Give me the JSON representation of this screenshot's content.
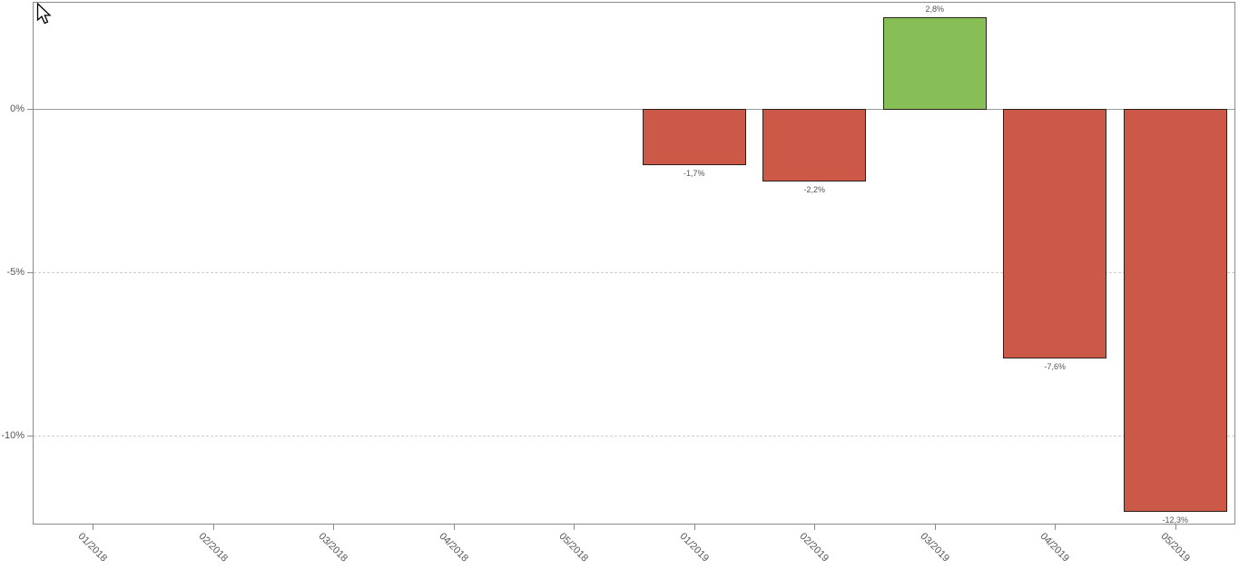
{
  "page": {
    "background": "#ffffff"
  },
  "chart": {
    "frame_color": "#8a8a8a",
    "axis_color": "#8a8a8a",
    "zero_line_color": "#999999",
    "grid_color": "#cfcfcf",
    "tick_label_color": "#555555",
    "value_label_color": "#555555",
    "bar_border_color": "#2a201c",
    "positive_color": "#87BE55",
    "negative_color": "#CC5847"
  },
  "chart_data": {
    "type": "bar",
    "title": "",
    "xlabel": "",
    "ylabel": "",
    "categories": [
      "01/2018",
      "02/2018",
      "03/2018",
      "04/2018",
      "05/2018",
      "01/2019",
      "02/2019",
      "03/2019",
      "04/2019",
      "05/2019"
    ],
    "values": [
      null,
      null,
      null,
      null,
      null,
      -1.7,
      -2.2,
      2.8,
      -7.6,
      -12.3
    ],
    "value_labels": [
      "",
      "",
      "",
      "",
      "",
      "-1,7%",
      "-2,2%",
      "2,8%",
      "-7,6%",
      "-12,3%"
    ],
    "y_ticks": [
      {
        "value": 0,
        "label": "0%"
      },
      {
        "value": -5,
        "label": "-5%"
      },
      {
        "value": -10,
        "label": "-10%"
      }
    ],
    "ylim": [
      -12.7,
      3.3
    ],
    "unit": "%",
    "grid": "dashed-horizontal",
    "legend": null
  }
}
